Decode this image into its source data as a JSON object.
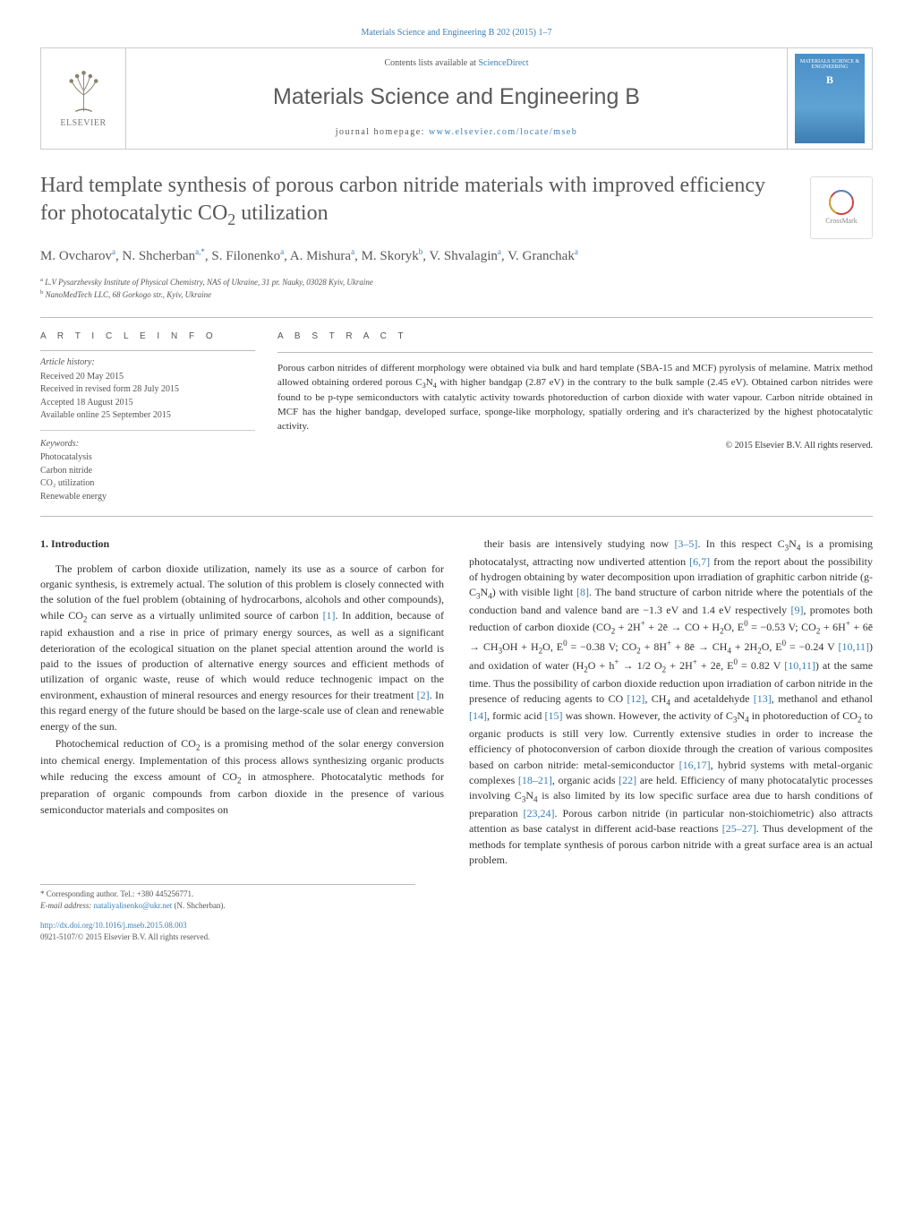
{
  "citation_top": "Materials Science and Engineering B 202 (2015) 1–7",
  "header": {
    "contents_prefix": "Contents lists available at ",
    "contents_link": "ScienceDirect",
    "journal_name": "Materials Science and Engineering B",
    "homepage_prefix": "journal homepage: ",
    "homepage_url": "www.elsevier.com/locate/mseb",
    "publisher_label": "ELSEVIER",
    "cover_line1": "MATERIALS SCIENCE & ENGINEERING",
    "cover_line2": "B"
  },
  "crossmark_label": "CrossMark",
  "title_html": "Hard template synthesis of porous carbon nitride materials with improved efficiency for photocatalytic CO<sub>2</sub> utilization",
  "authors_html": "M. Ovcharov<sup>a</sup>, N. Shcherban<sup>a,*</sup>, S. Filonenko<sup>a</sup>, A. Mishura<sup>a</sup>, M. Skoryk<sup>b</sup>, V. Shvalagin<sup>a</sup>, V. Granchak<sup>a</sup>",
  "affiliations": {
    "a": "L.V Pysarzhevsky Institute of Physical Chemistry, NAS of Ukraine, 31 pr. Nauky, 03028 Kyiv, Ukraine",
    "b": "NanoMedTech LLC, 68 Gorkogo str., Kyiv, Ukraine"
  },
  "article_info": {
    "heading": "A R T I C L E   I N F O",
    "history_label": "Article history:",
    "history": [
      "Received 20 May 2015",
      "Received in revised form 28 July 2015",
      "Accepted 18 August 2015",
      "Available online 25 September 2015"
    ],
    "keywords_label": "Keywords:",
    "keywords": [
      "Photocatalysis",
      "Carbon nitride",
      "CO₂ utilization",
      "Renewable energy"
    ]
  },
  "abstract": {
    "heading": "A B S T R A C T",
    "text_html": "Porous carbon nitrides of different morphology were obtained via bulk and hard template (SBA-15 and MCF) pyrolysis of melamine. Matrix method allowed obtaining ordered porous C<sub>3</sub>N<sub>4</sub> with higher bandgap (2.87 eV) in the contrary to the bulk sample (2.45 eV). Obtained carbon nitrides were found to be p-type semiconductors with catalytic activity towards photoreduction of carbon dioxide with water vapour. Carbon nitride obtained in MCF has the higher bandgap, developed surface, sponge-like morphology, spatially ordering and it's characterized by the highest photocatalytic activity.",
    "copyright": "© 2015 Elsevier B.V. All rights reserved."
  },
  "body": {
    "section1_heading": "1. Introduction",
    "para1_html": "The problem of carbon dioxide utilization, namely its use as a source of carbon for organic synthesis, is extremely actual. The solution of this problem is closely connected with the solution of the fuel problem (obtaining of hydrocarbons, alcohols and other compounds), while CO<sub>2</sub> can serve as a virtually unlimited source of carbon <span class=\"ref\">[1]</span>. In addition, because of rapid exhaustion and a rise in price of primary energy sources, as well as a significant deterioration of the ecological situation on the planet special attention around the world is paid to the issues of production of alternative energy sources and efficient methods of utilization of organic waste, reuse of which would reduce technogenic impact on the environment, exhaustion of mineral resources and energy resources for their treatment <span class=\"ref\">[2]</span>. In this regard energy of the future should be based on the large-scale use of clean and renewable energy of the sun.",
    "para2_html": "Photochemical reduction of CO<sub>2</sub> is a promising method of the solar energy conversion into chemical energy. Implementation of this process allows synthesizing organic products while reducing the excess amount of CO<sub>2</sub> in atmosphere. Photocatalytic methods for preparation of organic compounds from carbon dioxide in the presence of various semiconductor materials and composites on",
    "para3_html": "their basis are intensively studying now <span class=\"ref\">[3–5]</span>. In this respect C<sub>3</sub>N<sub>4</sub> is a promising photocatalyst, attracting now undiverted attention <span class=\"ref\">[6,7]</span> from the report about the possibility of hydrogen obtaining by water decomposition upon irradiation of graphitic carbon nitride (g-C<sub>3</sub>N<sub>4</sub>) with visible light <span class=\"ref\">[8]</span>. The band structure of carbon nitride where the potentials of the conduction band and valence band are −1.3 eV and 1.4 eV respectively <span class=\"ref\">[9]</span>, promotes both reduction of carbon dioxide (CO<sub>2</sub> + 2H<sup>+</sup> + 2ē → CO + H<sub>2</sub>O, E<sup>0</sup> = −0.53 V; CO<sub>2</sub> + 6H<sup>+</sup> + 6ē → CH<sub>3</sub>OH + H<sub>2</sub>O, E<sup>0</sup> = −0.38 V; CO<sub>2</sub> + 8H<sup>+</sup> + 8ē → CH<sub>4</sub> + 2H<sub>2</sub>O, E<sup>0</sup> = −0.24 V <span class=\"ref\">[10,11]</span>) and oxidation of water (H<sub>2</sub>O + h<sup>+</sup> → 1/2 O<sub>2</sub> + 2H<sup>+</sup> + 2ē, E<sup>0</sup> = 0.82 V <span class=\"ref\">[10,11]</span>) at the same time. Thus the possibility of carbon dioxide reduction upon irradiation of carbon nitride in the presence of reducing agents to CO <span class=\"ref\">[12]</span>, CH<sub>4</sub> and acetaldehyde <span class=\"ref\">[13]</span>, methanol and ethanol <span class=\"ref\">[14]</span>, formic acid <span class=\"ref\">[15]</span> was shown. However, the activity of C<sub>3</sub>N<sub>4</sub> in photoreduction of CO<sub>2</sub> to organic products is still very low. Currently extensive studies in order to increase the efficiency of photoconversion of carbon dioxide through the creation of various composites based on carbon nitride: metal-semiconductor <span class=\"ref\">[16,17]</span>, hybrid systems with metal-organic complexes <span class=\"ref\">[18–21]</span>, organic acids <span class=\"ref\">[22]</span> are held. Efficiency of many photocatalytic processes involving C<sub>3</sub>N<sub>4</sub> is also limited by its low specific surface area due to harsh conditions of preparation <span class=\"ref\">[23,24]</span>. Porous carbon nitride (in particular non-stoichiometric) also attracts attention as base catalyst in different acid-base reactions <span class=\"ref\">[25–27]</span>. Thus development of the methods for template synthesis of porous carbon nitride with a great surface area is an actual problem."
  },
  "footnote": {
    "corresponding": "* Corresponding author. Tel.: +380 445256771.",
    "email_label": "E-mail address:",
    "email": "nataliyalisenko@ukr.net",
    "email_who": "(N. Shcherban)."
  },
  "bottom": {
    "doi": "http://dx.doi.org/10.1016/j.mseb.2015.08.003",
    "issn_copy": "0921-5107/© 2015 Elsevier B.V. All rights reserved."
  },
  "colors": {
    "link": "#3b7fb5",
    "text": "#333333",
    "muted": "#555555",
    "border": "#cccccc",
    "title_gray": "#585858"
  },
  "typography": {
    "title_fontsize_pt": 18,
    "journal_fontsize_pt": 19,
    "body_fontsize_pt": 9,
    "abstract_fontsize_pt": 8.5,
    "info_fontsize_pt": 7.5
  }
}
